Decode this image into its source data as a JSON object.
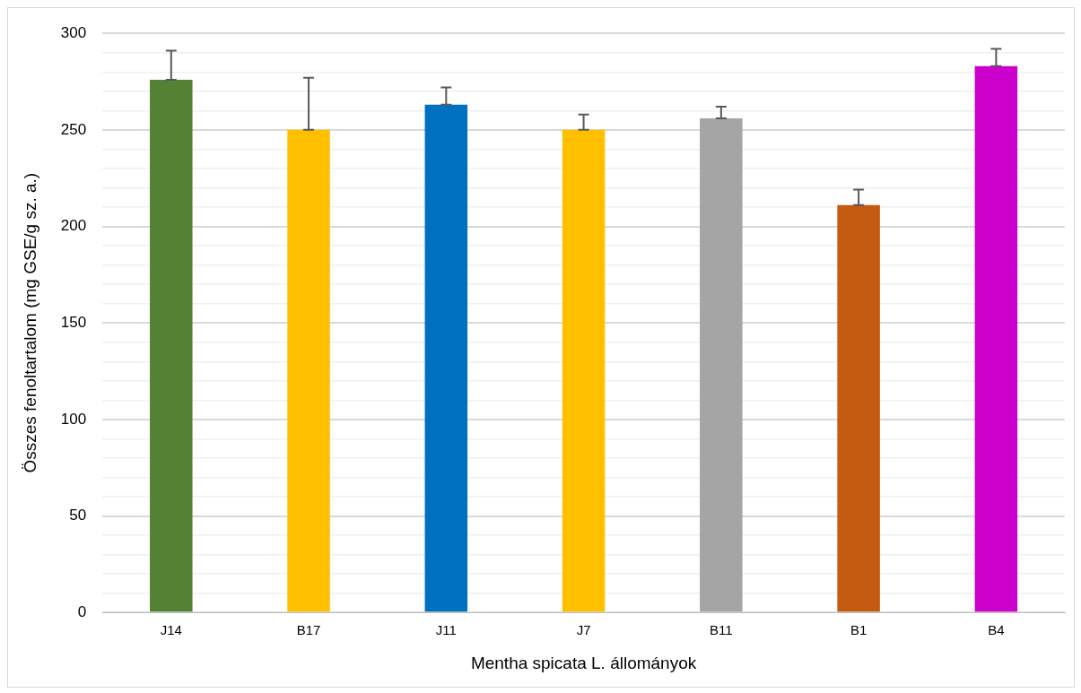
{
  "chart_data": {
    "type": "bar",
    "xlabel": "Mentha spicata L. állományok",
    "ylabel": "Összes fenoltartalom (mg GSE/g sz. a.)",
    "categories": [
      "J14",
      "B17",
      "J11",
      "J7",
      "B11",
      "B1",
      "B4"
    ],
    "values": [
      276,
      250,
      263,
      250,
      256,
      211,
      283
    ],
    "colors": [
      "#548235",
      "#ffc000",
      "#0070c0",
      "#ffc000",
      "#a5a5a5",
      "#c55a11",
      "#cc00cc"
    ],
    "errors": [
      [
        276,
        291
      ],
      [
        250,
        277
      ],
      [
        263,
        272
      ],
      [
        250,
        258
      ],
      [
        256,
        262
      ],
      [
        211,
        219
      ],
      [
        283,
        292
      ]
    ],
    "ylim": [
      0,
      300
    ],
    "yticks": [
      0,
      {
        "value": 10,
        "label": null
      },
      {
        "value": 20,
        "label": null
      },
      {
        "value": 30,
        "label": null
      },
      {
        "value": 40,
        "label": null
      },
      50,
      {
        "value": 60,
        "label": null
      },
      {
        "value": 70,
        "label": null
      },
      {
        "value": 80,
        "label": null
      },
      {
        "value": 90,
        "label": null
      },
      100,
      {
        "value": 110,
        "label": null
      },
      {
        "value": 120,
        "label": null
      },
      {
        "value": 130,
        "label": null
      },
      {
        "value": 140,
        "label": null
      },
      150,
      {
        "value": 160,
        "label": null
      },
      {
        "value": 170,
        "label": null
      },
      {
        "value": 180,
        "label": null
      },
      {
        "value": 190,
        "label": null
      },
      200,
      {
        "value": 210,
        "label": null
      },
      {
        "value": 220,
        "label": null
      },
      {
        "value": 230,
        "label": null
      },
      {
        "value": 240,
        "label": null
      },
      250,
      {
        "value": 260,
        "label": null
      },
      {
        "value": 270,
        "label": null
      },
      {
        "value": 280,
        "label": null
      },
      {
        "value": 290,
        "label": null
      },
      300
    ],
    "grid": "y"
  }
}
